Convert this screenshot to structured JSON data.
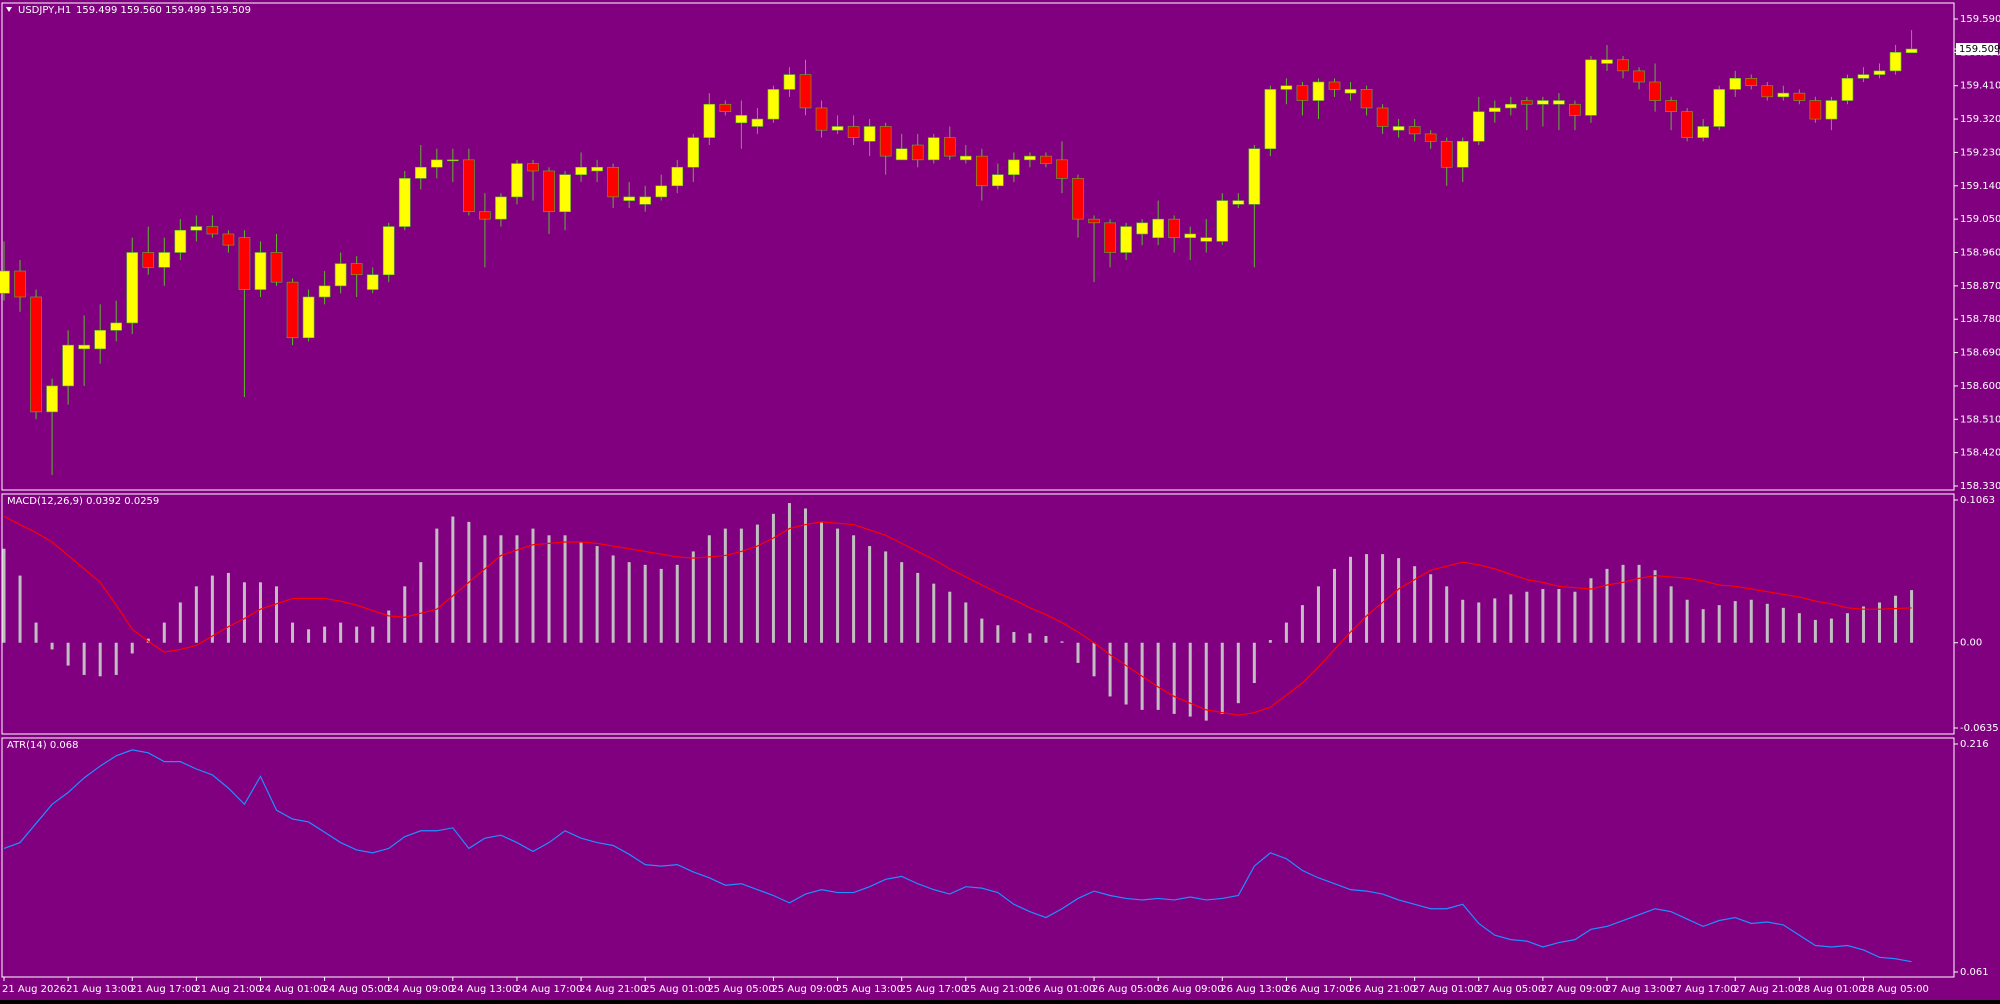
{
  "chart_data": [
    {
      "type": "candlestick",
      "title": "USDJPY,H1",
      "subtitle": "159.499 159.560 159.499 159.509",
      "bull_color": "#ffff00",
      "bear_color": "#ff0000",
      "wick_color": "#5cb82c",
      "ylim": [
        158.33,
        159.59
      ],
      "yticks": [
        {
          "value": 158.33,
          "label": "158.330"
        },
        {
          "value": 158.42,
          "label": "158.420"
        },
        {
          "value": 158.51,
          "label": "158.510"
        },
        {
          "value": 158.6,
          "label": "158.600"
        },
        {
          "value": 158.69,
          "label": "158.690"
        },
        {
          "value": 158.78,
          "label": "158.780"
        },
        {
          "value": 158.87,
          "label": "158.870"
        },
        {
          "value": 158.96,
          "label": "158.960"
        },
        {
          "value": 159.05,
          "label": "159.050"
        },
        {
          "value": 159.14,
          "label": "159.140"
        },
        {
          "value": 159.23,
          "label": "159.230"
        },
        {
          "value": 159.32,
          "label": "159.320"
        },
        {
          "value": 159.41,
          "label": "159.410"
        },
        {
          "value": 159.5,
          "label": "159.500"
        },
        {
          "value": 159.59,
          "label": "159.590"
        }
      ],
      "open": [
        158.85,
        158.91,
        158.84,
        158.53,
        158.6,
        158.7,
        158.7,
        158.75,
        158.77,
        158.96,
        158.92,
        158.96,
        159.02,
        159.03,
        159.01,
        159.0,
        158.86,
        158.96,
        158.88,
        158.73,
        158.84,
        158.87,
        158.93,
        158.86,
        158.9,
        159.03,
        159.16,
        159.19,
        159.21,
        159.21,
        159.07,
        159.05,
        159.11,
        159.2,
        159.18,
        159.07,
        159.17,
        159.18,
        159.19,
        159.1,
        159.09,
        159.11,
        159.14,
        159.19,
        159.27,
        159.36,
        159.31,
        159.3,
        159.32,
        159.4,
        159.44,
        159.35,
        159.29,
        159.3,
        159.26,
        159.3,
        159.21,
        159.25,
        159.21,
        159.27,
        159.21,
        159.22,
        159.14,
        159.17,
        159.21,
        159.22,
        159.21,
        159.16,
        159.05,
        159.04,
        158.96,
        159.01,
        159.0,
        159.05,
        159.0,
        158.99,
        158.99,
        159.09,
        159.09,
        159.24,
        159.4,
        159.41,
        159.37,
        159.42,
        159.39,
        159.4,
        159.35,
        159.29,
        159.3,
        159.28,
        159.26,
        159.19,
        159.26,
        159.34,
        159.35,
        159.37,
        159.36,
        159.36,
        159.36,
        159.33,
        159.47,
        159.48,
        159.45,
        159.42,
        159.37,
        159.34,
        159.27,
        159.3,
        159.4,
        159.43,
        159.41,
        159.38,
        159.39,
        159.37,
        159.32,
        159.37,
        159.43,
        159.44,
        159.45,
        159.499
      ],
      "high": [
        158.99,
        158.94,
        158.86,
        158.62,
        158.75,
        158.79,
        158.82,
        158.83,
        159.0,
        159.03,
        159.0,
        159.05,
        159.06,
        159.06,
        159.02,
        159.02,
        158.99,
        159.01,
        158.89,
        158.86,
        158.91,
        158.96,
        158.95,
        158.92,
        159.04,
        159.18,
        159.25,
        159.24,
        159.24,
        159.24,
        159.12,
        159.12,
        159.21,
        159.21,
        159.19,
        159.18,
        159.23,
        159.21,
        159.2,
        159.15,
        159.14,
        159.17,
        159.21,
        159.28,
        159.39,
        159.37,
        159.37,
        159.35,
        159.41,
        159.46,
        159.48,
        159.37,
        159.33,
        159.33,
        159.32,
        159.31,
        159.28,
        159.28,
        159.28,
        159.3,
        159.25,
        159.24,
        159.2,
        159.23,
        159.23,
        159.23,
        159.26,
        159.17,
        159.06,
        159.05,
        159.04,
        159.05,
        159.1,
        159.06,
        159.03,
        159.05,
        159.12,
        159.12,
        159.25,
        159.41,
        159.43,
        159.42,
        159.43,
        159.43,
        159.42,
        159.41,
        159.36,
        159.32,
        159.32,
        159.29,
        159.27,
        159.27,
        159.38,
        159.37,
        159.38,
        159.38,
        159.38,
        159.39,
        159.37,
        159.49,
        159.52,
        159.49,
        159.46,
        159.47,
        159.38,
        159.35,
        159.32,
        159.41,
        159.45,
        159.44,
        159.42,
        159.41,
        159.4,
        159.38,
        159.38,
        159.44,
        159.46,
        159.47,
        159.52,
        159.56
      ],
      "low": [
        158.83,
        158.8,
        158.51,
        158.36,
        158.55,
        158.6,
        158.66,
        158.72,
        158.74,
        158.9,
        158.87,
        158.94,
        158.99,
        159.0,
        158.96,
        158.57,
        158.84,
        158.87,
        158.71,
        158.72,
        158.82,
        158.85,
        158.84,
        158.85,
        158.88,
        159.02,
        159.13,
        159.16,
        159.15,
        159.06,
        158.92,
        159.03,
        159.09,
        159.1,
        159.01,
        159.02,
        159.15,
        159.15,
        159.08,
        159.08,
        159.07,
        159.1,
        159.12,
        159.15,
        159.25,
        159.33,
        159.24,
        159.28,
        159.31,
        159.38,
        159.33,
        159.27,
        159.28,
        159.25,
        159.22,
        159.17,
        159.21,
        159.19,
        159.2,
        159.21,
        159.2,
        159.1,
        159.13,
        159.15,
        159.19,
        159.19,
        159.12,
        159.0,
        158.88,
        158.92,
        158.94,
        158.98,
        158.98,
        158.96,
        158.94,
        158.96,
        158.98,
        159.08,
        158.92,
        159.22,
        159.36,
        159.33,
        159.32,
        159.38,
        159.37,
        159.33,
        159.28,
        159.27,
        159.26,
        159.24,
        159.14,
        159.15,
        159.25,
        159.31,
        159.33,
        159.29,
        159.3,
        159.29,
        159.29,
        159.31,
        159.45,
        159.43,
        159.4,
        159.34,
        159.29,
        159.26,
        159.26,
        159.29,
        159.38,
        159.4,
        159.37,
        159.37,
        159.36,
        159.31,
        159.29,
        159.36,
        159.42,
        159.43,
        159.44,
        159.499
      ],
      "close": [
        158.91,
        158.84,
        158.53,
        158.6,
        158.71,
        158.71,
        158.75,
        158.77,
        158.96,
        158.92,
        158.96,
        159.02,
        159.03,
        159.01,
        158.98,
        158.86,
        158.96,
        158.88,
        158.73,
        158.84,
        158.87,
        158.93,
        158.9,
        158.9,
        159.03,
        159.16,
        159.19,
        159.21,
        159.21,
        159.07,
        159.05,
        159.11,
        159.2,
        159.18,
        159.07,
        159.17,
        159.19,
        159.19,
        159.11,
        159.11,
        159.11,
        159.14,
        159.19,
        159.27,
        159.36,
        159.34,
        159.33,
        159.32,
        159.4,
        159.44,
        159.35,
        159.29,
        159.3,
        159.27,
        159.3,
        159.22,
        159.24,
        159.21,
        159.27,
        159.22,
        159.22,
        159.14,
        159.17,
        159.21,
        159.22,
        159.2,
        159.16,
        159.05,
        159.04,
        158.96,
        159.03,
        159.04,
        159.05,
        159.0,
        159.01,
        159.0,
        159.1,
        159.1,
        159.24,
        159.4,
        159.41,
        159.37,
        159.42,
        159.4,
        159.4,
        159.35,
        159.3,
        159.3,
        159.28,
        159.26,
        159.19,
        159.26,
        159.34,
        159.35,
        159.36,
        159.36,
        159.37,
        159.37,
        159.33,
        159.48,
        159.48,
        159.45,
        159.42,
        159.37,
        159.34,
        159.27,
        159.3,
        159.4,
        159.43,
        159.41,
        159.38,
        159.39,
        159.37,
        159.32,
        159.37,
        159.43,
        159.44,
        159.45,
        159.5,
        159.509
      ]
    },
    {
      "type": "macd",
      "title": "MACD(12,26,9) 0.0392 0.0259",
      "color": "#c0c0c0",
      "signal_color": "#ff0000",
      "ylim": [
        -0.0635,
        0.1063
      ],
      "yticks": [
        0.1063,
        {
          "value": 0,
          "label": "0.00"
        },
        -0.0635
      ],
      "values": [
        0.07,
        0.05,
        0.015,
        -0.005,
        -0.017,
        -0.024,
        -0.025,
        -0.024,
        -0.008,
        0.003,
        0.015,
        0.03,
        0.042,
        0.05,
        0.052,
        0.045,
        0.045,
        0.042,
        0.015,
        0.01,
        0.012,
        0.015,
        0.012,
        0.012,
        0.024,
        0.042,
        0.06,
        0.085,
        0.094,
        0.09,
        0.08,
        0.08,
        0.08,
        0.085,
        0.08,
        0.08,
        0.075,
        0.072,
        0.065,
        0.06,
        0.058,
        0.055,
        0.058,
        0.068,
        0.08,
        0.085,
        0.085,
        0.088,
        0.096,
        0.104,
        0.1,
        0.09,
        0.085,
        0.08,
        0.072,
        0.068,
        0.06,
        0.052,
        0.044,
        0.038,
        0.03,
        0.018,
        0.013,
        0.008,
        0.007,
        0.005,
        0.001,
        -0.015,
        -0.025,
        -0.04,
        -0.046,
        -0.05,
        -0.05,
        -0.053,
        -0.055,
        -0.058,
        -0.053,
        -0.045,
        -0.03,
        0.002,
        0.015,
        0.028,
        0.042,
        0.055,
        0.064,
        0.066,
        0.066,
        0.063,
        0.057,
        0.051,
        0.042,
        0.032,
        0.03,
        0.033,
        0.036,
        0.038,
        0.04,
        0.04,
        0.038,
        0.048,
        0.055,
        0.058,
        0.058,
        0.054,
        0.042,
        0.032,
        0.025,
        0.028,
        0.031,
        0.032,
        0.029,
        0.026,
        0.022,
        0.017,
        0.018,
        0.022,
        0.027,
        0.03,
        0.035,
        0.0392
      ],
      "signal": [
        0.094,
        0.088,
        0.082,
        0.075,
        0.065,
        0.055,
        0.045,
        0.028,
        0.01,
        0.001,
        -0.007,
        -0.005,
        -0.002,
        0.005,
        0.012,
        0.018,
        0.025,
        0.029,
        0.033,
        0.033,
        0.033,
        0.031,
        0.028,
        0.024,
        0.02,
        0.019,
        0.022,
        0.025,
        0.035,
        0.045,
        0.055,
        0.065,
        0.069,
        0.073,
        0.074,
        0.075,
        0.075,
        0.074,
        0.072,
        0.07,
        0.068,
        0.066,
        0.064,
        0.063,
        0.064,
        0.065,
        0.068,
        0.072,
        0.078,
        0.085,
        0.088,
        0.09,
        0.089,
        0.088,
        0.084,
        0.08,
        0.074,
        0.068,
        0.062,
        0.055,
        0.049,
        0.043,
        0.037,
        0.032,
        0.026,
        0.021,
        0.015,
        0.008,
        0,
        -0.009,
        -0.017,
        -0.025,
        -0.033,
        -0.04,
        -0.045,
        -0.05,
        -0.052,
        -0.054,
        -0.052,
        -0.048,
        -0.039,
        -0.03,
        -0.018,
        -0.005,
        0.008,
        0.02,
        0.03,
        0.04,
        0.047,
        0.054,
        0.057,
        0.06,
        0.058,
        0.055,
        0.051,
        0.047,
        0.045,
        0.042,
        0.041,
        0.04,
        0.043,
        0.045,
        0.048,
        0.05,
        0.049,
        0.048,
        0.046,
        0.043,
        0.042,
        0.04,
        0.038,
        0.036,
        0.034,
        0.031,
        0.029,
        0.026,
        0.025,
        0.025,
        0.0255,
        0.0259
      ]
    },
    {
      "type": "line",
      "title": "ATR(14) 0.068",
      "color": "#1e90ff",
      "ylim": [
        0.061,
        0.216
      ],
      "yticks": [
        0.216,
        0.061
      ],
      "values": [
        0.145,
        0.149,
        0.162,
        0.175,
        0.183,
        0.193,
        0.201,
        0.208,
        0.212,
        0.21,
        0.204,
        0.204,
        0.199,
        0.195,
        0.186,
        0.175,
        0.194,
        0.171,
        0.165,
        0.163,
        0.156,
        0.149,
        0.144,
        0.142,
        0.145,
        0.153,
        0.157,
        0.157,
        0.159,
        0.145,
        0.152,
        0.154,
        0.149,
        0.143,
        0.149,
        0.157,
        0.152,
        0.149,
        0.147,
        0.141,
        0.134,
        0.133,
        0.134,
        0.129,
        0.125,
        0.12,
        0.121,
        0.117,
        0.113,
        0.108,
        0.114,
        0.117,
        0.115,
        0.115,
        0.119,
        0.124,
        0.126,
        0.121,
        0.117,
        0.114,
        0.119,
        0.118,
        0.115,
        0.107,
        0.102,
        0.098,
        0.104,
        0.111,
        0.116,
        0.113,
        0.111,
        0.11,
        0.111,
        0.11,
        0.112,
        0.11,
        0.111,
        0.113,
        0.133,
        0.142,
        0.138,
        0.13,
        0.125,
        0.121,
        0.117,
        0.116,
        0.114,
        0.11,
        0.107,
        0.104,
        0.104,
        0.107,
        0.094,
        0.086,
        0.083,
        0.082,
        0.078,
        0.081,
        0.083,
        0.09,
        0.092,
        0.096,
        0.1,
        0.104,
        0.102,
        0.097,
        0.092,
        0.096,
        0.098,
        0.094,
        0.095,
        0.093,
        0.086,
        0.079,
        0.078,
        0.079,
        0.076,
        0.071,
        0.07,
        0.068
      ],
      "xticks": [
        {
          "value": 0,
          "label": "21 Aug 2026"
        },
        {
          "value": 4,
          "label": "21 Aug 13:00"
        },
        {
          "value": 8,
          "label": "21 Aug 17:00"
        },
        {
          "value": 12,
          "label": "21 Aug 21:00"
        },
        {
          "value": 16,
          "label": "24 Aug 01:00"
        },
        {
          "value": 20,
          "label": "24 Aug 05:00"
        },
        {
          "value": 24,
          "label": "24 Aug 09:00"
        },
        {
          "value": 28,
          "label": "24 Aug 13:00"
        },
        {
          "value": 32,
          "label": "24 Aug 17:00"
        },
        {
          "value": 36,
          "label": "24 Aug 21:00"
        },
        {
          "value": 40,
          "label": "25 Aug 01:00"
        },
        {
          "value": 44,
          "label": "25 Aug 05:00"
        },
        {
          "value": 48,
          "label": "25 Aug 09:00"
        },
        {
          "value": 52,
          "label": "25 Aug 13:00"
        },
        {
          "value": 56,
          "label": "25 Aug 17:00"
        },
        {
          "value": 60,
          "label": "25 Aug 21:00"
        },
        {
          "value": 64,
          "label": "26 Aug 01:00"
        },
        {
          "value": 68,
          "label": "26 Aug 05:00"
        },
        {
          "value": 72,
          "label": "26 Aug 09:00"
        },
        {
          "value": 76,
          "label": "26 Aug 13:00"
        },
        {
          "value": 80,
          "label": "26 Aug 17:00"
        },
        {
          "value": 84,
          "label": "26 Aug 21:00"
        },
        {
          "value": 88,
          "label": "27 Aug 01:00"
        },
        {
          "value": 92,
          "label": "27 Aug 05:00"
        },
        {
          "value": 96,
          "label": "27 Aug 09:00"
        },
        {
          "value": 100,
          "label": "27 Aug 13:00"
        },
        {
          "value": 104,
          "label": "27 Aug 17:00"
        },
        {
          "value": 108,
          "label": "27 Aug 21:00"
        },
        {
          "value": 112,
          "label": "28 Aug 01:00"
        },
        {
          "value": 116,
          "label": "28 Aug 05:00"
        }
      ]
    }
  ]
}
